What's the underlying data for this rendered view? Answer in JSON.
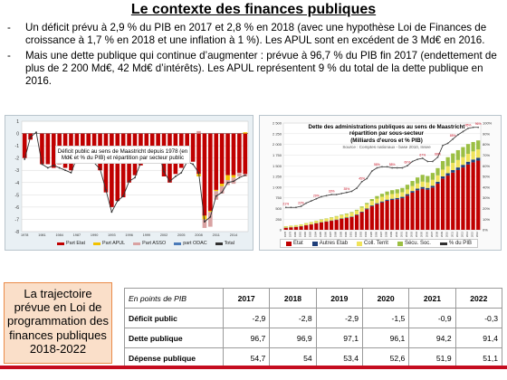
{
  "title": "Le contexte des finances publiques",
  "bullets": [
    "Un déficit prévu à 2,9 % du PIB en 2017 et 2,8 % en 2018 (avec une hypothèse Loi de Finances de croissance à 1,7 % en 2018 et une inflation à 1 %). Les APUL sont en excédent de 3 Md€ en 2016.",
    "Mais une dette publique qui continue d’augmenter : prévue à 96,7 % du PIB fin 2017 (endettement de plus de 2 200 Md€, 42 Md€ d’intérêts). Les APUL représentent 9 % du total de la dette publique en 2016."
  ],
  "bullet_marker": "-",
  "colors": {
    "etat": "#c00000",
    "apul": "#f2c200",
    "asso": "#d9a2a2",
    "odac": "#4a7ab8",
    "total": "#303030",
    "secu": "#9bbf43",
    "autres": "#1f3f7a",
    "coll": "#f0e35a",
    "accent": "#c50c1f",
    "box_fill": "#fadfc9",
    "box_border": "#ea8b49"
  },
  "left_chart": {
    "caption": "Déficit public au sens de Maastricht depuis 1978 (en Md€ et % du PIB) et répartition par secteur public",
    "legend": [
      "Part Etat",
      "Part APUL",
      "Part ASSO",
      "part ODAC",
      "Total"
    ]
  },
  "right_chart": {
    "caption_lines": [
      "Dette des administrations publiques au sens de Maastricht",
      "répartition par sous-secteur",
      "(Milliards d'euros et % PIB)"
    ],
    "source": "Source : Comptes nationaux - base 2010, Insee",
    "legend": [
      "Etat",
      "Autres Etab",
      "Coll. Territ",
      "Sécu. Soc.",
      "% du PIB"
    ],
    "left_axis_ticks": [
      "0",
      "250",
      "500",
      "750",
      "1 000",
      "1 250",
      "1 500",
      "1 750",
      "2 000",
      "2 250",
      "2 500"
    ],
    "right_axis_ticks": [
      "0%",
      "10%",
      "20%",
      "30%",
      "40%",
      "50%",
      "60%",
      "70%",
      "80%",
      "90%",
      "100%"
    ]
  },
  "chart_data": [
    {
      "type": "bar",
      "title": "Déficit public au sens de Maastricht depuis 1978 (en Md€ et % du PIB) et répartition par secteur public",
      "x": [
        1978,
        1979,
        1980,
        1981,
        1982,
        1983,
        1984,
        1985,
        1986,
        1987,
        1988,
        1989,
        1990,
        1991,
        1992,
        1993,
        1994,
        1995,
        1996,
        1997,
        1998,
        1999,
        2000,
        2001,
        2002,
        2003,
        2004,
        2005,
        2006,
        2007,
        2008,
        2009,
        2010,
        2011,
        2012,
        2013,
        2014,
        2015,
        2016
      ],
      "series": [
        {
          "name": "Part Etat",
          "values": [
            -2,
            -0.5,
            0,
            -2.5,
            -2.5,
            -2.8,
            -2.5,
            -2.8,
            -3,
            -2,
            -2,
            -1.5,
            -2.3,
            -3,
            -4.8,
            -6,
            -5.5,
            -5.2,
            -4,
            -3.4,
            -2.6,
            -2.1,
            -2.2,
            -2.2,
            -3.5,
            -4,
            -3.3,
            -2.8,
            -2.3,
            -2.3,
            -3.3,
            -6.7,
            -6.3,
            -4.6,
            -4.1,
            -3.4,
            -3.4,
            -3.2,
            -3.3
          ]
        },
        {
          "name": "Part APUL",
          "values": [
            0,
            0,
            0,
            0,
            0,
            0,
            0,
            0,
            0,
            0,
            0,
            0,
            0,
            0,
            0,
            0,
            0,
            0,
            0,
            0,
            0,
            0,
            0,
            0,
            0,
            0,
            0,
            0,
            0,
            0,
            -0.2,
            -0.3,
            -0.1,
            -0.1,
            -0.2,
            -0.4,
            -0.2,
            0,
            0.1
          ]
        },
        {
          "name": "Part ASSO",
          "values": [
            0,
            0,
            0,
            0,
            0,
            0,
            0,
            0,
            0,
            0,
            0,
            0,
            0,
            0,
            0,
            0,
            0,
            0,
            0,
            0,
            0,
            0,
            0,
            0,
            0,
            0,
            0,
            0,
            0,
            0,
            0.2,
            -0.7,
            -1.2,
            -0.7,
            -0.6,
            -0.4,
            -0.5,
            -0.3,
            -0.2
          ]
        },
        {
          "name": "part ODAC",
          "values": [
            0,
            0,
            0,
            0,
            0,
            0,
            0,
            0,
            0,
            0,
            0,
            0,
            0,
            0,
            0,
            0,
            0,
            0,
            0,
            0,
            0,
            0,
            0,
            0,
            0,
            0,
            0,
            0,
            0,
            0,
            0,
            0,
            0,
            0,
            0,
            0,
            0,
            0,
            0
          ]
        },
        {
          "name": "Total",
          "values": [
            -2.1,
            -0.3,
            0.1,
            -2.5,
            -2.8,
            -2.6,
            -2.8,
            -3,
            -3.2,
            -2,
            -2.4,
            -1.8,
            -2.4,
            -2.9,
            -4.6,
            -6.4,
            -5.5,
            -5.1,
            -3.9,
            -3.6,
            -2.4,
            -1.6,
            -1.3,
            -1.4,
            -3.1,
            -3.9,
            -3.5,
            -3.2,
            -2.3,
            -2.5,
            -3.2,
            -7.2,
            -6.8,
            -5.1,
            -4.8,
            -4,
            -3.9,
            -3.6,
            -3.4
          ]
        }
      ],
      "ylim": [
        -8,
        1
      ],
      "ytick_labels": [
        "-8",
        "-7",
        "-6",
        "-5",
        "-4",
        "-3",
        "-2",
        "-1",
        "0",
        "1"
      ],
      "xtick_labels": [
        "1978",
        "1981",
        "1984",
        "1987",
        "1990",
        "1993",
        "1996",
        "1999",
        "2002",
        "2005",
        "2008",
        "2011",
        "2014"
      ],
      "legend_position": "bottom"
    },
    {
      "type": "bar",
      "title": "Dette des administrations publiques au sens de Maastricht répartition par sous-secteur (Milliards d'euros et % PIB)",
      "x": [
        1978,
        1979,
        1980,
        1981,
        1982,
        1983,
        1984,
        1985,
        1986,
        1987,
        1988,
        1989,
        1990,
        1991,
        1992,
        1993,
        1994,
        1995,
        1996,
        1997,
        1998,
        1999,
        2000,
        2001,
        2002,
        2003,
        2004,
        2005,
        2006,
        2007,
        2008,
        2009,
        2010,
        2011,
        2012,
        2013,
        2014,
        2015,
        2016
      ],
      "series": [
        {
          "name": "Etat",
          "values": [
            45,
            55,
            65,
            80,
            105,
            125,
            150,
            170,
            190,
            210,
            230,
            255,
            275,
            300,
            345,
            410,
            480,
            550,
            600,
            640,
            680,
            700,
            715,
            740,
            800,
            870,
            925,
            960,
            940,
            990,
            1080,
            1200,
            1270,
            1340,
            1400,
            1460,
            1530,
            1580,
            1620
          ]
        },
        {
          "name": "Autres Etab",
          "values": [
            5,
            5,
            5,
            5,
            6,
            6,
            7,
            8,
            8,
            9,
            10,
            10,
            11,
            12,
            14,
            16,
            18,
            20,
            22,
            24,
            26,
            28,
            30,
            32,
            35,
            38,
            40,
            42,
            40,
            42,
            45,
            50,
            55,
            58,
            60,
            62,
            64,
            66,
            68
          ]
        },
        {
          "name": "Coll. Territ",
          "values": [
            30,
            32,
            34,
            38,
            42,
            46,
            50,
            55,
            60,
            65,
            70,
            75,
            80,
            85,
            90,
            95,
            100,
            105,
            108,
            110,
            110,
            110,
            108,
            108,
            110,
            115,
            120,
            125,
            130,
            140,
            150,
            160,
            165,
            170,
            175,
            180,
            185,
            190,
            195
          ]
        },
        {
          "name": "Sécu. Soc.",
          "values": [
            5,
            5,
            5,
            5,
            6,
            6,
            7,
            8,
            9,
            10,
            12,
            14,
            16,
            18,
            20,
            25,
            30,
            45,
            60,
            70,
            80,
            90,
            95,
            100,
            110,
            120,
            140,
            160,
            150,
            160,
            170,
            200,
            210,
            220,
            230,
            235,
            230,
            220,
            210
          ]
        },
        {
          "name": "% du PIB",
          "values": [
            21,
            21,
            21,
            22,
            25,
            27,
            29,
            31,
            32,
            33,
            33,
            34,
            35,
            36,
            39,
            45,
            48,
            55,
            58,
            59,
            59,
            58,
            58,
            58,
            60,
            64,
            66,
            67,
            64,
            64,
            68,
            79,
            81,
            85,
            89,
            92,
            95,
            96,
            96
          ]
        }
      ],
      "ylim": [
        0,
        2500
      ],
      "y2lim": [
        0,
        100
      ],
      "legend_position": "bottom"
    }
  ],
  "box_text": "La trajectoire prévue en Loi de programmation des finances publiques 2018-2022",
  "table": {
    "header_label": "En points de PIB",
    "years": [
      "2017",
      "2018",
      "2019",
      "2020",
      "2021",
      "2022"
    ],
    "rows": [
      {
        "label": "Déficit public",
        "values": [
          "-2,9",
          "-2,8",
          "-2,9",
          "-1,5",
          "-0,9",
          "-0,3"
        ]
      },
      {
        "label": "Dette publique",
        "values": [
          "96,7",
          "96,9",
          "97,1",
          "96,1",
          "94,2",
          "91,4"
        ]
      },
      {
        "label": "Dépense publique",
        "values": [
          "54,7",
          "54",
          "53,4",
          "52,6",
          "51,9",
          "51,1"
        ]
      }
    ]
  }
}
